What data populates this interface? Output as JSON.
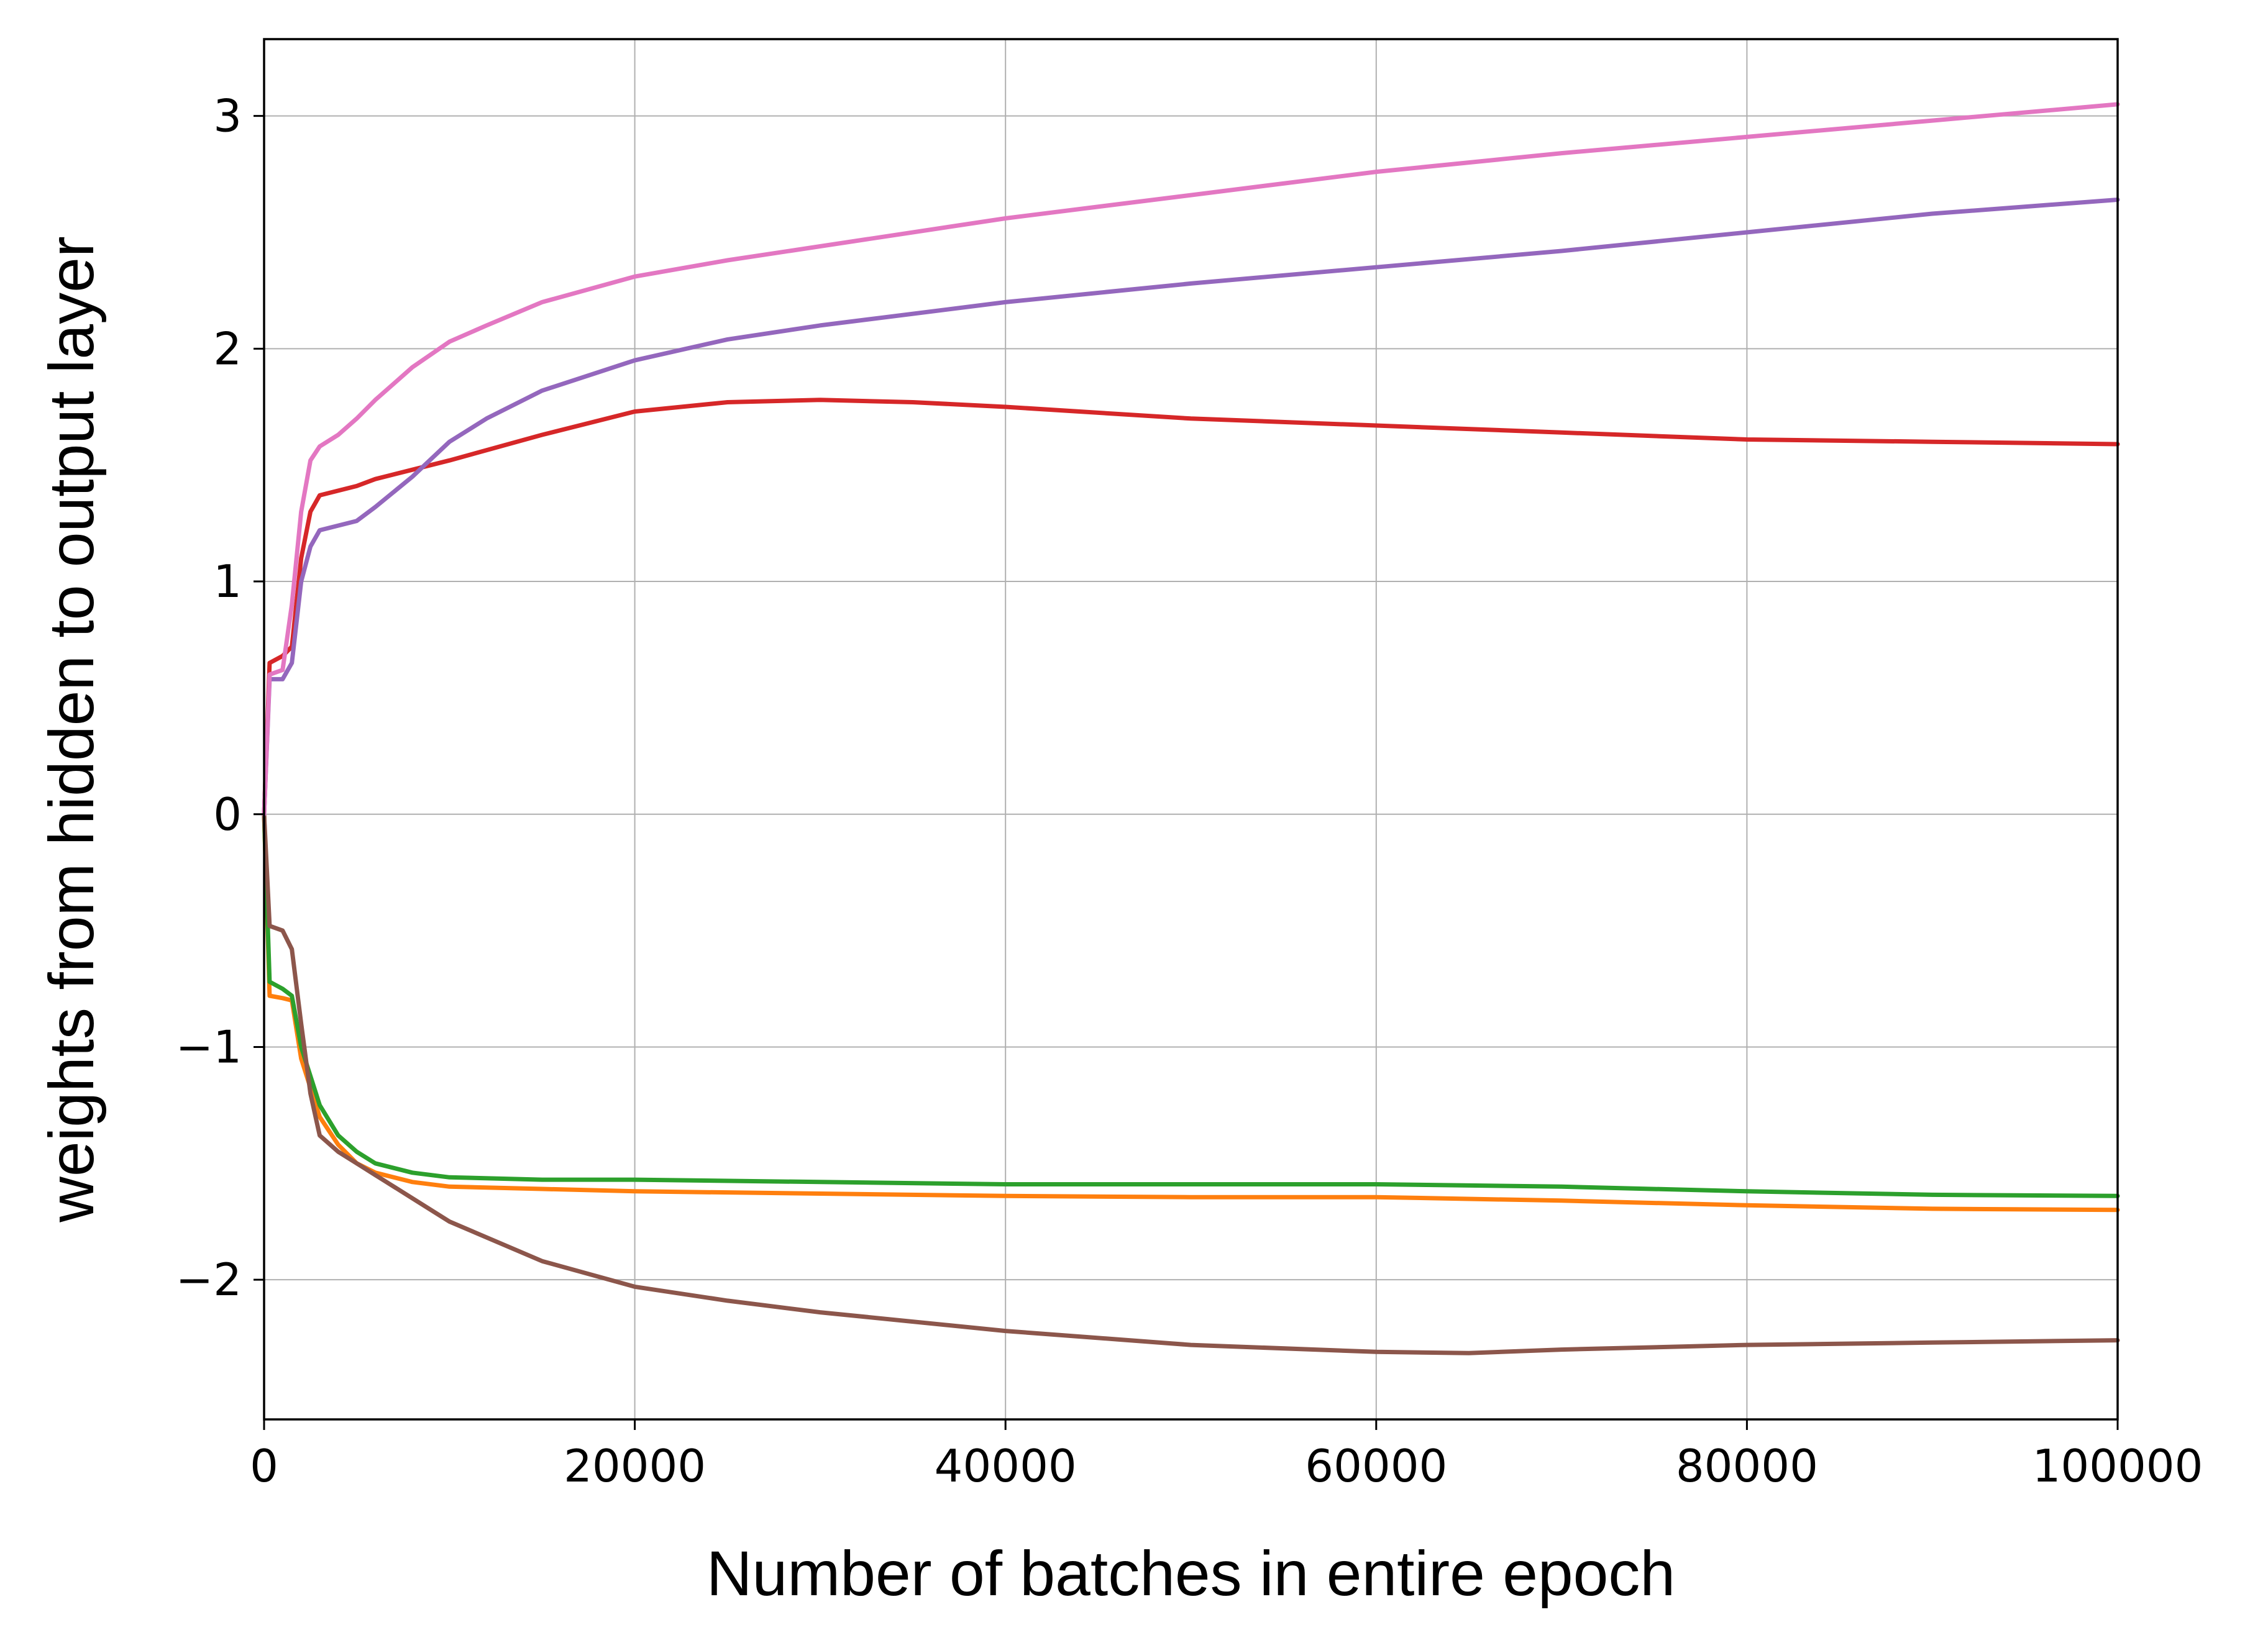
{
  "chart_data": {
    "type": "line",
    "title": "",
    "xlabel": "Number of batches in entire epoch",
    "ylabel": "weights from hidden to output layer",
    "xlim": [
      0,
      100000
    ],
    "ylim": [
      -2.6,
      3.33
    ],
    "xticks": [
      0,
      20000,
      40000,
      60000,
      80000,
      100000
    ],
    "xtick_labels": [
      "0",
      "20000",
      "40000",
      "60000",
      "80000",
      "100000"
    ],
    "yticks": [
      -2,
      -1,
      0,
      1,
      2,
      3
    ],
    "ytick_labels": [
      "−2",
      "−1",
      "0",
      "1",
      "2",
      "3"
    ],
    "grid": true,
    "legend": "none",
    "series": [
      {
        "color": "#ff7f0e",
        "points": [
          [
            0,
            0
          ],
          [
            300,
            -0.78
          ],
          [
            1000,
            -0.79
          ],
          [
            1500,
            -0.8
          ],
          [
            2000,
            -1.05
          ],
          [
            3000,
            -1.3
          ],
          [
            4000,
            -1.42
          ],
          [
            5000,
            -1.5
          ],
          [
            6000,
            -1.54
          ],
          [
            8000,
            -1.58
          ],
          [
            10000,
            -1.6
          ],
          [
            15000,
            -1.61
          ],
          [
            20000,
            -1.62
          ],
          [
            30000,
            -1.63
          ],
          [
            40000,
            -1.64
          ],
          [
            50000,
            -1.645
          ],
          [
            60000,
            -1.645
          ],
          [
            70000,
            -1.66
          ],
          [
            80000,
            -1.68
          ],
          [
            90000,
            -1.695
          ],
          [
            100000,
            -1.7
          ]
        ]
      },
      {
        "color": "#2ca02c",
        "points": [
          [
            0,
            0
          ],
          [
            300,
            -0.72
          ],
          [
            1000,
            -0.75
          ],
          [
            1500,
            -0.78
          ],
          [
            2000,
            -1.0
          ],
          [
            3000,
            -1.25
          ],
          [
            4000,
            -1.38
          ],
          [
            5000,
            -1.45
          ],
          [
            6000,
            -1.5
          ],
          [
            8000,
            -1.54
          ],
          [
            10000,
            -1.56
          ],
          [
            15000,
            -1.57
          ],
          [
            20000,
            -1.57
          ],
          [
            30000,
            -1.58
          ],
          [
            40000,
            -1.59
          ],
          [
            50000,
            -1.59
          ],
          [
            60000,
            -1.59
          ],
          [
            70000,
            -1.6
          ],
          [
            80000,
            -1.62
          ],
          [
            90000,
            -1.635
          ],
          [
            100000,
            -1.64
          ]
        ]
      },
      {
        "color": "#d62728",
        "points": [
          [
            0,
            0
          ],
          [
            300,
            0.65
          ],
          [
            1000,
            0.68
          ],
          [
            1500,
            0.72
          ],
          [
            2000,
            1.1
          ],
          [
            2500,
            1.3
          ],
          [
            3000,
            1.37
          ],
          [
            4000,
            1.39
          ],
          [
            5000,
            1.41
          ],
          [
            6000,
            1.44
          ],
          [
            8000,
            1.48
          ],
          [
            10000,
            1.52
          ],
          [
            15000,
            1.63
          ],
          [
            20000,
            1.73
          ],
          [
            25000,
            1.77
          ],
          [
            30000,
            1.78
          ],
          [
            35000,
            1.77
          ],
          [
            40000,
            1.75
          ],
          [
            50000,
            1.7
          ],
          [
            60000,
            1.67
          ],
          [
            70000,
            1.64
          ],
          [
            80000,
            1.61
          ],
          [
            90000,
            1.6
          ],
          [
            100000,
            1.59
          ]
        ]
      },
      {
        "color": "#9467bd",
        "points": [
          [
            0,
            0
          ],
          [
            300,
            0.58
          ],
          [
            1000,
            0.58
          ],
          [
            1500,
            0.65
          ],
          [
            2000,
            1.0
          ],
          [
            2500,
            1.15
          ],
          [
            3000,
            1.22
          ],
          [
            4000,
            1.24
          ],
          [
            5000,
            1.26
          ],
          [
            6000,
            1.32
          ],
          [
            8000,
            1.45
          ],
          [
            10000,
            1.6
          ],
          [
            12000,
            1.7
          ],
          [
            15000,
            1.82
          ],
          [
            20000,
            1.95
          ],
          [
            25000,
            2.04
          ],
          [
            30000,
            2.1
          ],
          [
            40000,
            2.2
          ],
          [
            50000,
            2.28
          ],
          [
            60000,
            2.35
          ],
          [
            70000,
            2.42
          ],
          [
            80000,
            2.5
          ],
          [
            90000,
            2.58
          ],
          [
            100000,
            2.64
          ]
        ]
      },
      {
        "color": "#8c564b",
        "points": [
          [
            0,
            0
          ],
          [
            300,
            -0.48
          ],
          [
            1000,
            -0.5
          ],
          [
            1500,
            -0.58
          ],
          [
            2000,
            -0.9
          ],
          [
            2500,
            -1.2
          ],
          [
            3000,
            -1.38
          ],
          [
            4000,
            -1.45
          ],
          [
            5000,
            -1.5
          ],
          [
            6000,
            -1.55
          ],
          [
            8000,
            -1.65
          ],
          [
            10000,
            -1.75
          ],
          [
            15000,
            -1.92
          ],
          [
            20000,
            -2.03
          ],
          [
            25000,
            -2.09
          ],
          [
            30000,
            -2.14
          ],
          [
            40000,
            -2.22
          ],
          [
            50000,
            -2.28
          ],
          [
            60000,
            -2.31
          ],
          [
            65000,
            -2.315
          ],
          [
            70000,
            -2.3
          ],
          [
            80000,
            -2.28
          ],
          [
            90000,
            -2.27
          ],
          [
            100000,
            -2.26
          ]
        ]
      },
      {
        "color": "#e377c2",
        "points": [
          [
            0,
            0
          ],
          [
            300,
            0.6
          ],
          [
            1000,
            0.62
          ],
          [
            1500,
            0.9
          ],
          [
            2000,
            1.3
          ],
          [
            2500,
            1.52
          ],
          [
            3000,
            1.58
          ],
          [
            4000,
            1.63
          ],
          [
            5000,
            1.7
          ],
          [
            6000,
            1.78
          ],
          [
            8000,
            1.92
          ],
          [
            10000,
            2.03
          ],
          [
            12000,
            2.1
          ],
          [
            15000,
            2.2
          ],
          [
            20000,
            2.31
          ],
          [
            25000,
            2.38
          ],
          [
            30000,
            2.44
          ],
          [
            40000,
            2.56
          ],
          [
            50000,
            2.66
          ],
          [
            60000,
            2.76
          ],
          [
            70000,
            2.84
          ],
          [
            80000,
            2.91
          ],
          [
            90000,
            2.98
          ],
          [
            100000,
            3.05
          ]
        ]
      }
    ]
  }
}
